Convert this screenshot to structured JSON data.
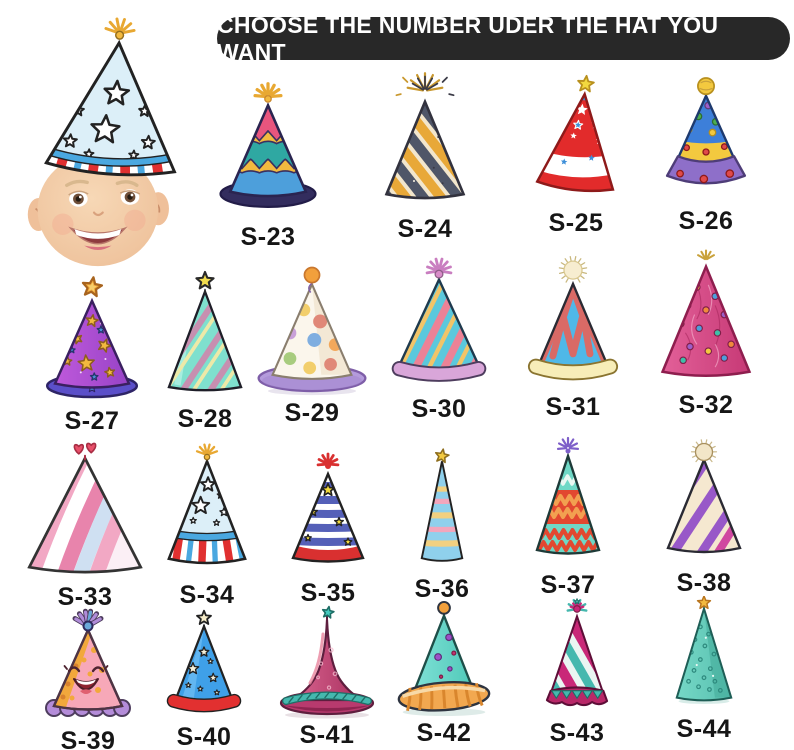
{
  "page": {
    "background": "#FFFFFF"
  },
  "banner": {
    "text": "CHOOSE THE NUMBER UDER THE HAT YOU WANT",
    "background": "#282828",
    "text_color": "#FFFFFF"
  },
  "baby_example": {
    "description": "Smiling baby face wearing example party hat: light blue cone with white outline stars, blue band and red-white-blue striped brim with gold tassel"
  },
  "hats": [
    {
      "id": "s23",
      "label": "S-23",
      "style": "wavy pink, yellow, teal and blue bands, navy brim, yellow tassel"
    },
    {
      "id": "s24",
      "label": "S-24",
      "style": "gold and charcoal diagonal stripes with gold starburst topper"
    },
    {
      "id": "s25",
      "label": "S-25",
      "style": "red with white, blue and yellow stars, white dotted band, yellow star topper"
    },
    {
      "id": "s26",
      "label": "S-26",
      "style": "blue polka-dot with yellow band, purple flared brim, yellow pom-pom"
    },
    {
      "id": "s27",
      "label": "S-27",
      "style": "purple with gold and blue stars, indigo brim, orange star topper"
    },
    {
      "id": "s28",
      "label": "S-28",
      "style": "mint with mauve and yellow diagonal stripes, yellow star topper"
    },
    {
      "id": "s29",
      "label": "S-29",
      "style": "cream watercolor polka-dot, lavender brim, orange pom-pom"
    },
    {
      "id": "s30",
      "label": "S-30",
      "style": "teal with pink and yellow diagonal stripes, lavender band, pink tassel"
    },
    {
      "id": "s31",
      "label": "S-31",
      "style": "blue with coral zigzag edges, cream band, fuzzy cream pom-pom"
    },
    {
      "id": "s32",
      "label": "S-32",
      "style": "magenta textured cone with multicolor dots and gold tip"
    },
    {
      "id": "s33",
      "label": "S-33",
      "style": "pink, white and blue swirl stripes with red hearts topper"
    },
    {
      "id": "s34",
      "label": "S-34",
      "style": "light blue with white stars, blue band, red-white-blue striped brim, gold tassel"
    },
    {
      "id": "s35",
      "label": "S-35",
      "style": "blue and white stripes with yellow stars, red band, red tassel"
    },
    {
      "id": "s36",
      "label": "S-36",
      "style": "slim blue cone with yellow and pink stripes, gold star topper"
    },
    {
      "id": "s37",
      "label": "S-37",
      "style": "teal and red chevron zigzags with purple tassel"
    },
    {
      "id": "s38",
      "label": "S-38",
      "style": "purple and cream diagonal stripes with magenta accent, cream pom-pom"
    },
    {
      "id": "s39",
      "label": "S-39",
      "style": "smiling kawaii pink hat with orange dots, purple ruffle and tassel"
    },
    {
      "id": "s40",
      "label": "S-40",
      "style": "blue with cream stars, red band, cream star topper"
    },
    {
      "id": "s41",
      "label": "S-41",
      "style": "magenta curved hat with wide brim, teal rope band, teal star"
    },
    {
      "id": "s42",
      "label": "S-42",
      "style": "teal with purple dots, orange striped brim, orange ball topper"
    },
    {
      "id": "s43",
      "label": "S-43",
      "style": "magenta, teal and white diagonal stripes, ruffled base, burst topper"
    },
    {
      "id": "s44",
      "label": "S-44",
      "style": "teal with small circle dots and gold star topper"
    }
  ]
}
